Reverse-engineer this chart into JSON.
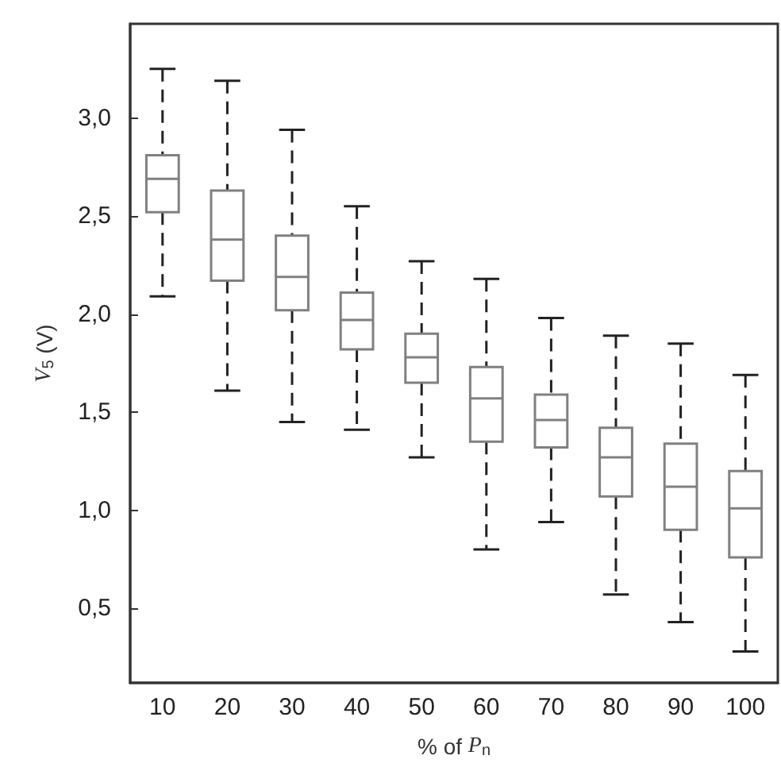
{
  "chart_data": {
    "type": "box",
    "xlabel": "% of P$_{n}$",
    "ylabel": "V$_{5}$ (V)",
    "categories": [
      "10",
      "20",
      "30",
      "40",
      "50",
      "60",
      "70",
      "80",
      "90",
      "100"
    ],
    "boxes": [
      {
        "low": 2.09,
        "q1": 2.52,
        "median": 2.69,
        "q3": 2.81,
        "high": 3.25
      },
      {
        "low": 1.61,
        "q1": 2.17,
        "median": 2.38,
        "q3": 2.63,
        "high": 3.19
      },
      {
        "low": 1.45,
        "q1": 2.02,
        "median": 2.19,
        "q3": 2.4,
        "high": 2.94
      },
      {
        "low": 1.41,
        "q1": 1.82,
        "median": 1.97,
        "q3": 2.11,
        "high": 2.55
      },
      {
        "low": 1.27,
        "q1": 1.65,
        "median": 1.78,
        "q3": 1.9,
        "high": 2.27
      },
      {
        "low": 0.8,
        "q1": 1.35,
        "median": 1.57,
        "q3": 1.73,
        "high": 2.18
      },
      {
        "low": 0.94,
        "q1": 1.32,
        "median": 1.46,
        "q3": 1.59,
        "high": 1.98
      },
      {
        "low": 0.57,
        "q1": 1.07,
        "median": 1.27,
        "q3": 1.42,
        "high": 1.89
      },
      {
        "low": 0.43,
        "q1": 0.9,
        "median": 1.12,
        "q3": 1.34,
        "high": 1.85
      },
      {
        "low": 0.28,
        "q1": 0.76,
        "median": 1.01,
        "q3": 1.2,
        "high": 1.69
      }
    ],
    "color": "#808080",
    "line_style": "dashed",
    "ylim": [
      0.12,
      3.48
    ],
    "yticks": [
      {
        "value": 0.5,
        "label": "0,5"
      },
      {
        "value": 1.0,
        "label": "1,0"
      },
      {
        "value": 1.5,
        "label": "1,5"
      },
      {
        "value": 2.0,
        "label": "2,0"
      },
      {
        "value": 2.5,
        "label": "2,5"
      },
      {
        "value": 3.0,
        "label": "3,0"
      }
    ],
    "grid": false
  }
}
